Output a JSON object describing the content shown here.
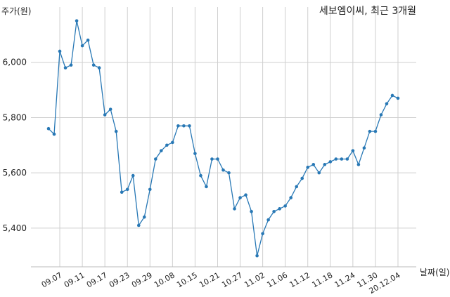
{
  "chart_data": {
    "type": "line",
    "title": "세보엠이씨, 최근 3개월",
    "ylabel": "주가(원)",
    "xlabel": "날짜(일)",
    "ylim": [
      5260,
      6200
    ],
    "yticks": [
      5400,
      5600,
      5800,
      6000
    ],
    "ytick_labels": [
      "5,400",
      "5,600",
      "5,800",
      "6,000"
    ],
    "xtick_labels": [
      "09.07",
      "09.11",
      "09.17",
      "09.23",
      "09.29",
      "10.08",
      "10.15",
      "10.21",
      "10.27",
      "11.02",
      "11.06",
      "11.12",
      "11.18",
      "11.24",
      "11.30",
      "20.12.04"
    ],
    "xtick_index": [
      2,
      6,
      10,
      14,
      18,
      22,
      26,
      30,
      34,
      38,
      42,
      46,
      50,
      54,
      58,
      62
    ],
    "grid": true,
    "line_color": "#2878b5",
    "series": [
      {
        "values": [
          5760,
          5740,
          6040,
          5980,
          5990,
          6150,
          6060,
          6080,
          5990,
          5980,
          5810,
          5830,
          5750,
          5530,
          5540,
          5590,
          5410,
          5440,
          5540,
          5650,
          5680,
          5700,
          5710,
          5770,
          5770,
          5770,
          5670,
          5590,
          5550,
          5650,
          5650,
          5610,
          5600,
          5470,
          5510,
          5520,
          5460,
          5300,
          5380,
          5430,
          5460,
          5470,
          5480,
          5510,
          5550,
          5580,
          5620,
          5630,
          5600,
          5630,
          5640,
          5650,
          5650,
          5650,
          5680,
          5630,
          5690,
          5750,
          5750,
          5810,
          5850,
          5880,
          5870
        ]
      }
    ]
  }
}
